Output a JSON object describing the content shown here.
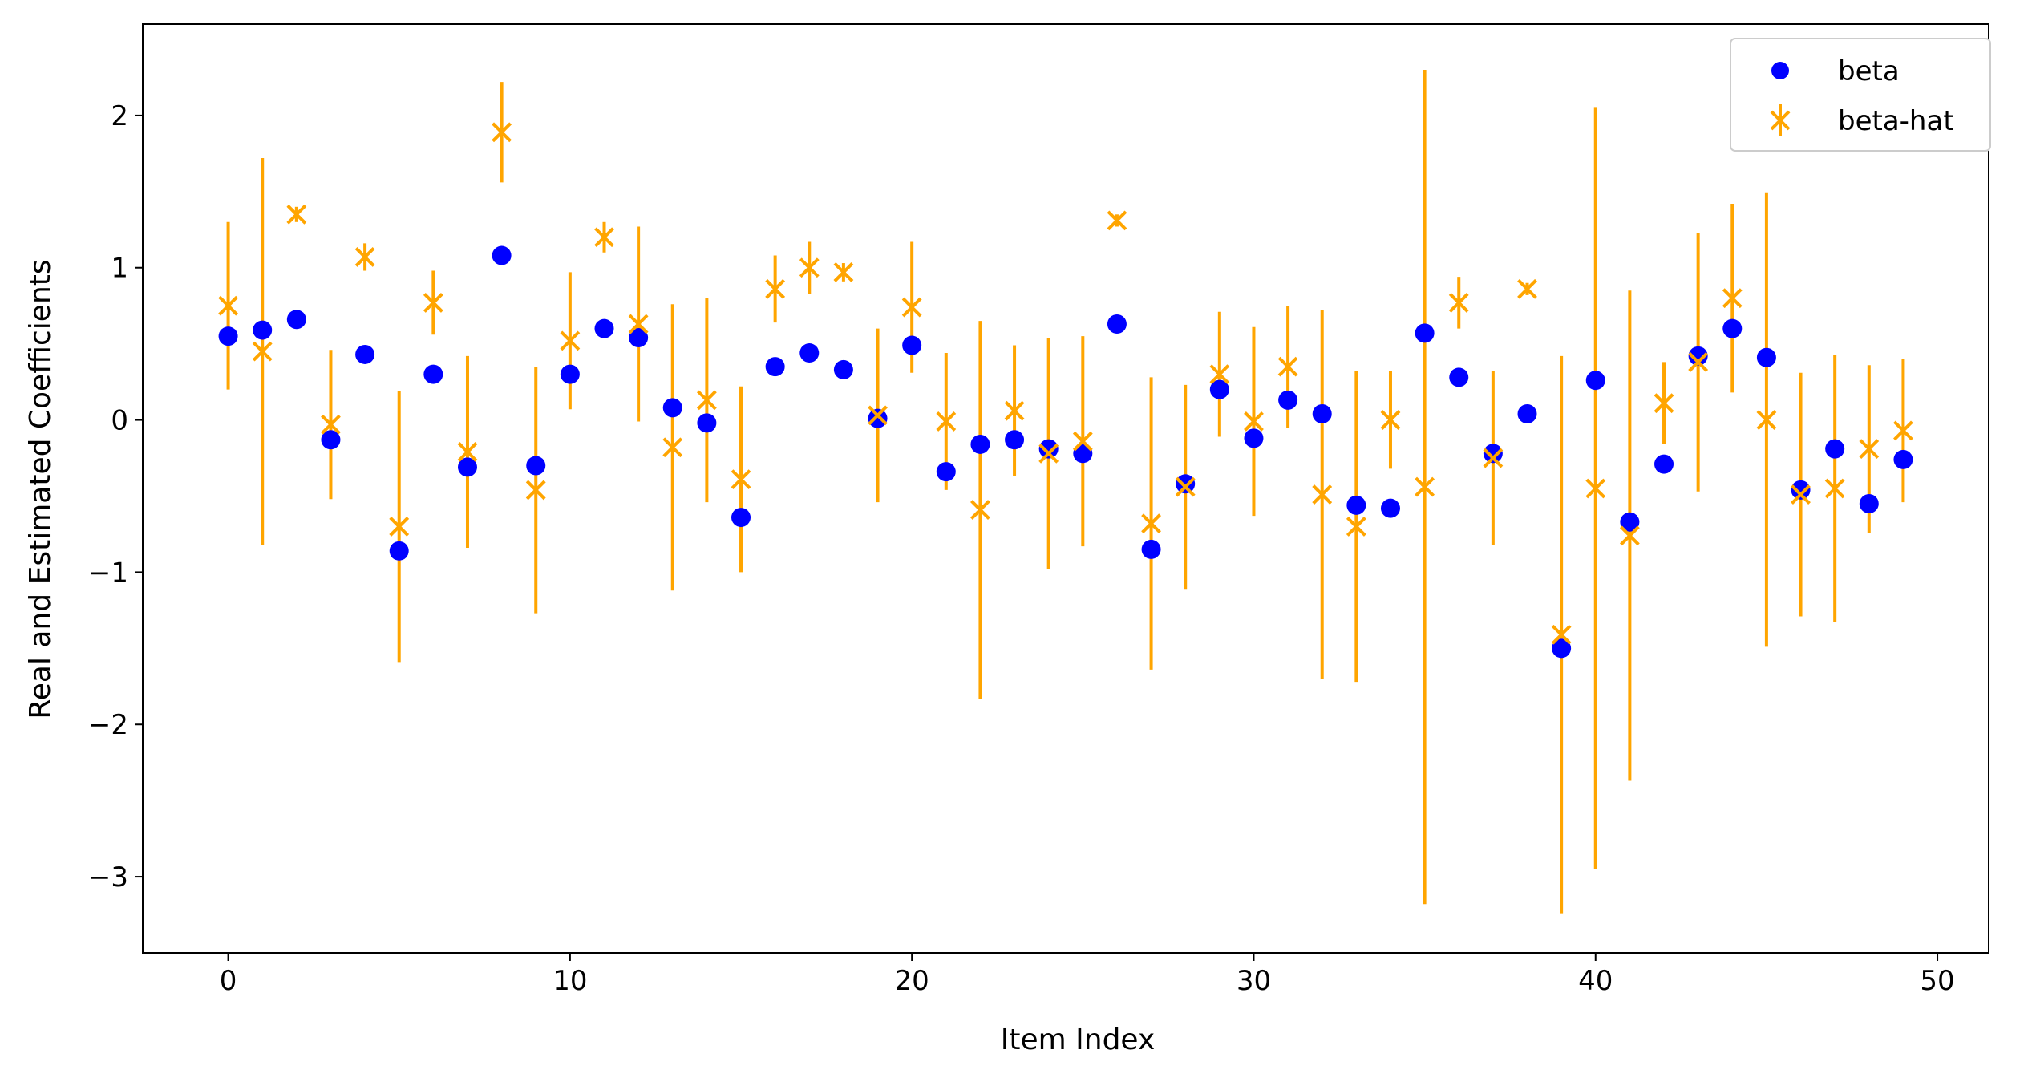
{
  "chart_data": {
    "type": "scatter",
    "title": "",
    "xlabel": "Item Index",
    "ylabel": "Real and Estimated Coefficients",
    "xlim": [
      -2.5,
      51.5
    ],
    "ylim": [
      -3.5,
      2.6
    ],
    "xticks": [
      0,
      10,
      20,
      30,
      40,
      50
    ],
    "xtick_labels": [
      "0",
      "10",
      "20",
      "30",
      "40",
      "50"
    ],
    "yticks": [
      -3,
      -2,
      -1,
      0,
      1,
      2
    ],
    "ytick_labels": [
      "−3",
      "−2",
      "−1",
      "0",
      "1",
      "2"
    ],
    "grid": false,
    "legend_position": "top-right",
    "x": [
      0,
      1,
      2,
      3,
      4,
      5,
      6,
      7,
      8,
      9,
      10,
      11,
      12,
      13,
      14,
      15,
      16,
      17,
      18,
      19,
      20,
      21,
      22,
      23,
      24,
      25,
      26,
      27,
      28,
      29,
      30,
      31,
      32,
      33,
      34,
      35,
      36,
      37,
      38,
      39,
      40,
      41,
      42,
      43,
      44,
      45,
      46,
      47,
      48,
      49
    ],
    "series": [
      {
        "name": "beta",
        "marker": "circle",
        "color": "#0000ff",
        "values": [
          0.55,
          0.59,
          0.66,
          -0.13,
          0.43,
          -0.86,
          0.3,
          -0.31,
          1.08,
          -0.3,
          0.3,
          0.6,
          0.54,
          0.08,
          -0.02,
          -0.64,
          0.35,
          0.44,
          0.33,
          0.01,
          0.49,
          -0.34,
          -0.16,
          -0.13,
          -0.19,
          -0.22,
          0.63,
          -0.85,
          -0.42,
          0.2,
          -0.12,
          0.13,
          0.04,
          -0.56,
          -0.58,
          0.57,
          0.28,
          -0.22,
          0.04,
          -1.5,
          0.26,
          -0.67,
          -0.29,
          0.42,
          0.6,
          0.41,
          -0.46,
          -0.19,
          -0.55,
          -0.26
        ]
      },
      {
        "name": "beta-hat",
        "marker": "x",
        "color": "#ffa500",
        "values": [
          0.75,
          0.45,
          1.35,
          -0.03,
          1.07,
          -0.7,
          0.77,
          -0.21,
          1.89,
          -0.46,
          0.52,
          1.2,
          0.63,
          -0.18,
          0.13,
          -0.39,
          0.86,
          1.0,
          0.97,
          0.03,
          0.74,
          -0.01,
          -0.59,
          0.06,
          -0.22,
          -0.14,
          1.31,
          -0.68,
          -0.44,
          0.3,
          -0.01,
          0.35,
          -0.49,
          -0.7,
          0.0,
          -0.44,
          0.77,
          -0.25,
          0.86,
          -1.41,
          -0.45,
          -0.76,
          0.11,
          0.38,
          0.8,
          0.0,
          -0.49,
          -0.45,
          -0.19,
          -0.07
        ],
        "error": [
          0.55,
          1.27,
          0.05,
          0.49,
          0.09,
          0.89,
          0.21,
          0.63,
          0.33,
          0.81,
          0.45,
          0.1,
          0.64,
          0.94,
          0.67,
          0.61,
          0.22,
          0.17,
          0.06,
          0.57,
          0.43,
          0.45,
          1.24,
          0.43,
          0.76,
          0.69,
          0.04,
          0.96,
          0.67,
          0.41,
          0.62,
          0.4,
          1.21,
          1.02,
          0.32,
          2.74,
          0.17,
          0.57,
          0.04,
          1.83,
          2.5,
          1.61,
          0.27,
          0.85,
          0.62,
          1.49,
          0.8,
          0.88,
          0.55,
          0.47
        ]
      }
    ]
  }
}
